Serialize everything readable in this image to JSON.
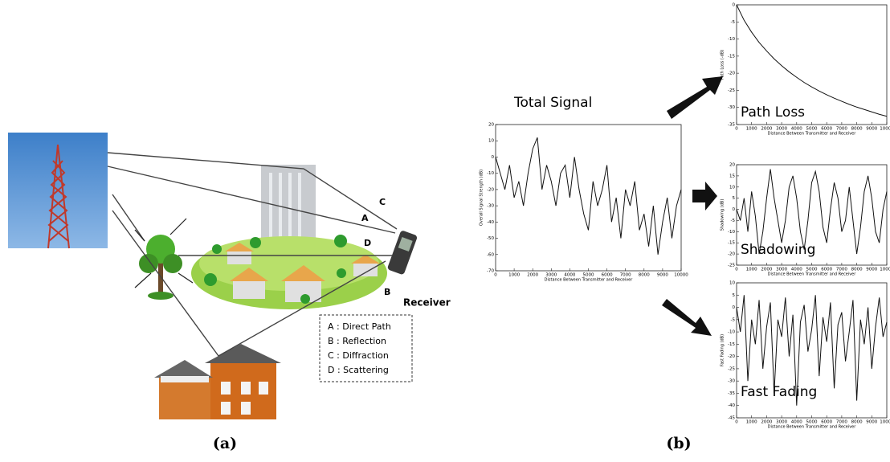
{
  "panel_a": {
    "paths": [
      "A",
      "B",
      "C",
      "D"
    ],
    "receiver": "Receiver",
    "legend": [
      "A : Direct Path",
      "B : Reflection",
      "C : Diffraction",
      "D : Scattering"
    ],
    "caption": "(a)"
  },
  "panel_b": {
    "caption": "(b)",
    "charts": [
      {
        "type": "line",
        "title": "Total Signal",
        "xlabel": "Distance Between Transmitter and Receiver",
        "ylabel": "Overall Signal Strength (dB)",
        "xlim": [
          0,
          10000
        ],
        "ylim": [
          -70,
          20
        ],
        "xticks": [
          0,
          1000,
          2000,
          3000,
          4000,
          5000,
          6000,
          7000,
          8000,
          9000,
          10000
        ],
        "yticks": [
          20,
          10,
          0,
          -10,
          -20,
          -30,
          -40,
          -50,
          -60,
          -70
        ],
        "x": [
          0,
          250,
          500,
          750,
          1000,
          1250,
          1500,
          1750,
          2000,
          2250,
          2500,
          2750,
          3000,
          3250,
          3500,
          3750,
          4000,
          4250,
          4500,
          4750,
          5000,
          5250,
          5500,
          5750,
          6000,
          6250,
          6500,
          6750,
          7000,
          7250,
          7500,
          7750,
          8000,
          8250,
          8500,
          8750,
          9000,
          9250,
          9500,
          9750,
          10000
        ],
        "values": [
          0,
          -10,
          -20,
          -5,
          -25,
          -15,
          -30,
          -10,
          5,
          12,
          -20,
          -5,
          -15,
          -30,
          -10,
          -5,
          -25,
          0,
          -20,
          -35,
          -45,
          -15,
          -30,
          -20,
          -5,
          -40,
          -25,
          -50,
          -20,
          -30,
          -15,
          -45,
          -35,
          -55,
          -30,
          -60,
          -40,
          -25,
          -50,
          -30,
          -20
        ]
      },
      {
        "type": "line",
        "title": "Path Loss",
        "xlabel": "Distance Between Transmitter and Receiver",
        "ylabel": "Path Loss (-dB)",
        "xlim": [
          0,
          10000
        ],
        "ylim": [
          -35,
          0
        ],
        "xticks": [
          0,
          1000,
          2000,
          3000,
          4000,
          5000,
          6000,
          7000,
          8000,
          9000,
          10000
        ],
        "yticks": [
          0,
          -5,
          -10,
          -15,
          -20,
          -25,
          -30,
          -35
        ],
        "x": [
          0,
          500,
          1000,
          1500,
          2000,
          2500,
          3000,
          3500,
          4000,
          4500,
          5000,
          5500,
          6000,
          6500,
          7000,
          7500,
          8000,
          8500,
          9000,
          9500,
          10000
        ],
        "values": [
          0,
          -4.5,
          -8,
          -11,
          -13.5,
          -15.8,
          -17.8,
          -19.6,
          -21.2,
          -22.7,
          -24,
          -25.2,
          -26.3,
          -27.3,
          -28.2,
          -29.1,
          -29.9,
          -30.6,
          -31.3,
          -32,
          -32.6
        ]
      },
      {
        "type": "line",
        "title": "Shadowing",
        "xlabel": "Distance Between Transmitter and Receiver",
        "ylabel": "Shadowing (dB)",
        "xlim": [
          0,
          10000
        ],
        "ylim": [
          -25,
          20
        ],
        "xticks": [
          0,
          1000,
          2000,
          3000,
          4000,
          5000,
          6000,
          7000,
          8000,
          9000,
          10000
        ],
        "yticks": [
          20,
          15,
          10,
          5,
          0,
          -5,
          -10,
          -15,
          -20,
          -25
        ],
        "x": [
          0,
          250,
          500,
          750,
          1000,
          1250,
          1500,
          1750,
          2000,
          2250,
          2500,
          2750,
          3000,
          3250,
          3500,
          3750,
          4000,
          4250,
          4500,
          4750,
          5000,
          5250,
          5500,
          5750,
          6000,
          6250,
          6500,
          6750,
          7000,
          7250,
          7500,
          7750,
          8000,
          8250,
          8500,
          8750,
          9000,
          9250,
          9500,
          9750,
          10000
        ],
        "values": [
          0,
          -5,
          5,
          -10,
          8,
          -3,
          -20,
          -10,
          5,
          18,
          5,
          -5,
          -15,
          -5,
          10,
          15,
          5,
          -10,
          -18,
          -5,
          12,
          17,
          8,
          -8,
          -15,
          0,
          12,
          5,
          -10,
          -5,
          10,
          -5,
          -20,
          -8,
          8,
          15,
          5,
          -10,
          -15,
          0,
          8
        ]
      },
      {
        "type": "line",
        "title": "Fast Fading",
        "xlabel": "Distance Between Transmitter and Receiver",
        "ylabel": "Fast Fading (dB)",
        "xlim": [
          0,
          10000
        ],
        "ylim": [
          -45,
          10
        ],
        "xticks": [
          0,
          1000,
          2000,
          3000,
          4000,
          5000,
          6000,
          7000,
          8000,
          9000,
          10000
        ],
        "yticks": [
          10,
          5,
          0,
          -5,
          -10,
          -15,
          -20,
          -25,
          -30,
          -35,
          -40,
          -45
        ],
        "x": [
          0,
          250,
          500,
          750,
          1000,
          1250,
          1500,
          1750,
          2000,
          2250,
          2500,
          2750,
          3000,
          3250,
          3500,
          3750,
          4000,
          4250,
          4500,
          4750,
          5000,
          5250,
          5500,
          5750,
          6000,
          6250,
          6500,
          6750,
          7000,
          7250,
          7500,
          7750,
          8000,
          8250,
          8500,
          8750,
          9000,
          9250,
          9500,
          9750,
          10000
        ],
        "values": [
          0,
          -10,
          5,
          -30,
          -5,
          -15,
          3,
          -25,
          -8,
          2,
          -35,
          -5,
          -12,
          4,
          -20,
          -3,
          -40,
          -6,
          1,
          -18,
          -9,
          5,
          -28,
          -4,
          -14,
          2,
          -33,
          -7,
          -2,
          -22,
          -10,
          3,
          -38,
          -5,
          -15,
          0,
          -25,
          -8,
          4,
          -12,
          -6
        ]
      }
    ]
  }
}
